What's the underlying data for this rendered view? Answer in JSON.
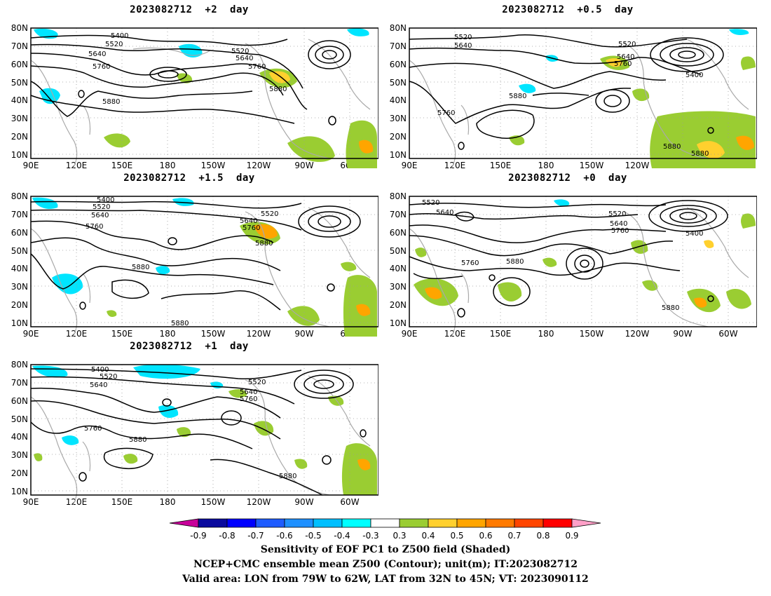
{
  "panels": [
    {
      "title": "2023082712  +2  day"
    },
    {
      "title": "2023082712  +0.5  day"
    },
    {
      "title": "2023082712  +1.5  day"
    },
    {
      "title": "2023082712  +0  day"
    },
    {
      "title": "2023082712  +1  day"
    }
  ],
  "axes": {
    "lat_labels": [
      "80N",
      "70N",
      "60N",
      "50N",
      "40N",
      "30N",
      "20N",
      "10N"
    ],
    "lon_labels": [
      "90E",
      "120E",
      "150E",
      "180",
      "150W",
      "120W",
      "90W",
      "60W"
    ]
  },
  "contour_labels": {
    "p0": [
      "5400",
      "5520",
      "5640",
      "5520",
      "5640",
      "5760",
      "5760",
      "5880",
      "5880"
    ],
    "p1": [
      "5520",
      "5640",
      "5520",
      "5640",
      "5760",
      "5400",
      "5880",
      "5760",
      "5880",
      "5880"
    ],
    "p2": [
      "5400",
      "5520",
      "5640",
      "5760",
      "5520",
      "5640",
      "5760",
      "5880",
      "5880",
      "5880"
    ],
    "p3": [
      "5520",
      "5640",
      "5520",
      "5640",
      "5760",
      "5400",
      "5760",
      "5880",
      "5880"
    ],
    "p4": [
      "5400",
      "5520",
      "5640",
      "5520",
      "5640",
      "5760",
      "5760",
      "5880",
      "5880"
    ]
  },
  "colorbar": {
    "labels": [
      "-0.9",
      "-0.8",
      "-0.7",
      "-0.6",
      "-0.5",
      "-0.4",
      "-0.3",
      "0.3",
      "0.4",
      "0.5",
      "0.6",
      "0.7",
      "0.8",
      "0.9"
    ],
    "colors": [
      "#0a0a9e",
      "#0000ff",
      "#1e5cff",
      "#1e90ff",
      "#00bfff",
      "#00ffff",
      "#ffffff",
      "#9acd32",
      "#ffd02e",
      "#ffa500",
      "#ff7a00",
      "#ff4500",
      "#ff0000"
    ],
    "min_arrow_color": "#c8009a",
    "max_arrow_color": "#ffa0c8"
  },
  "caption": {
    "line1": "Sensitivity of EOF PC1 to Z500 field (Shaded)",
    "line2": "NCEP+CMC ensemble mean Z500 (Contour); unit(m); IT:2023082712",
    "line3": "Valid area: LON from 79W to 62W, LAT from 32N to 45N; VT: 2023090112"
  },
  "colors": {
    "contour": "#000000",
    "coast": "#a9a9a9",
    "grid": "#9a9a9a",
    "neg_shade": "#00e5ff",
    "pos_green": "#9acd32",
    "pos_yellow": "#ffd02e",
    "pos_orange": "#ffa500"
  }
}
